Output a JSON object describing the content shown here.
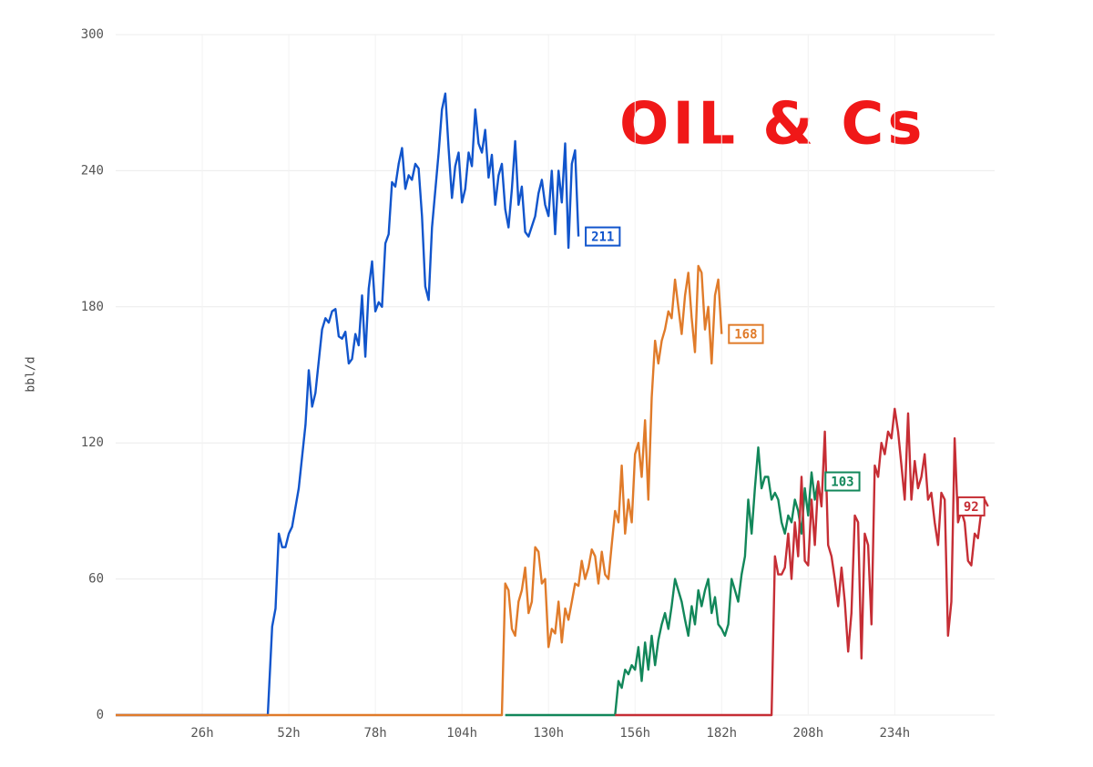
{
  "chart_data": {
    "type": "line",
    "ylabel": "bbl/d",
    "annotation": "OIL & Cs",
    "xlim": [
      0,
      264
    ],
    "ylim": [
      0,
      300
    ],
    "xticks": [
      {
        "value": 26,
        "label": "26h"
      },
      {
        "value": 52,
        "label": "52h"
      },
      {
        "value": 78,
        "label": "78h"
      },
      {
        "value": 104,
        "label": "104h"
      },
      {
        "value": 130,
        "label": "130h"
      },
      {
        "value": 156,
        "label": "156h"
      },
      {
        "value": 182,
        "label": "182h"
      },
      {
        "value": 208,
        "label": "208h"
      },
      {
        "value": 234,
        "label": "234h"
      }
    ],
    "yticks": [
      0,
      60,
      120,
      180,
      240,
      300
    ],
    "grid": true,
    "series": [
      {
        "color": "#1155cc",
        "x": [
          0,
          45.7,
          47,
          48,
          49,
          50,
          51,
          52,
          53,
          55,
          57,
          58,
          59,
          60,
          62,
          63,
          64,
          65,
          66,
          67,
          68,
          69,
          70,
          71,
          72,
          73,
          74,
          75,
          76,
          77,
          78,
          79,
          80,
          81,
          82,
          83,
          84,
          85,
          86,
          87,
          88,
          89,
          90,
          91,
          92,
          93,
          94,
          95,
          97,
          98,
          99,
          100,
          101,
          102,
          103,
          104,
          105,
          106,
          107,
          108,
          109,
          110,
          111,
          112,
          113,
          114,
          115,
          116,
          117,
          118,
          119,
          120,
          121,
          122,
          123,
          124,
          126,
          127,
          128,
          129,
          130,
          131,
          132,
          133,
          134,
          135,
          136,
          137,
          138,
          139
        ],
        "values": [
          0,
          0,
          39,
          47,
          80,
          74,
          74,
          80,
          83,
          100,
          128,
          152,
          136,
          142,
          170,
          175,
          173,
          178,
          179,
          167,
          166,
          169,
          155,
          157,
          168,
          163,
          185,
          158,
          188,
          200,
          178,
          182,
          180,
          208,
          212,
          235,
          233,
          243,
          250,
          232,
          238,
          236,
          243,
          241,
          220,
          189,
          183,
          215,
          248,
          267,
          274,
          250,
          228,
          242,
          248,
          226,
          232,
          248,
          242,
          267,
          252,
          248,
          258,
          237,
          247,
          225,
          238,
          243,
          223,
          215,
          232,
          253,
          225,
          233,
          213,
          211,
          220,
          230,
          236,
          225,
          220,
          240,
          212,
          240,
          226,
          252,
          206,
          243,
          249,
          211
        ]
      },
      {
        "color": "#e07b2a",
        "x": [
          0,
          116,
          117,
          118,
          119,
          120,
          121,
          122,
          123,
          124,
          125,
          126,
          127,
          128,
          129,
          130,
          131,
          132,
          133,
          134,
          135,
          136,
          137,
          138,
          139,
          140,
          141,
          142,
          143,
          144,
          145,
          146,
          147,
          148,
          149,
          150,
          151,
          152,
          153,
          154,
          155,
          156,
          157,
          158,
          159,
          160,
          161,
          162,
          163,
          164,
          165,
          166,
          167,
          168,
          169,
          170,
          171,
          172,
          173,
          174,
          175,
          176,
          177,
          178,
          179,
          180,
          181,
          182
        ],
        "values": [
          0,
          0,
          58,
          55,
          38,
          35,
          50,
          55,
          65,
          45,
          50,
          74,
          72,
          58,
          60,
          30,
          38,
          36,
          50,
          32,
          47,
          42,
          50,
          58,
          57,
          68,
          60,
          65,
          73,
          70,
          58,
          72,
          62,
          60,
          75,
          90,
          85,
          110,
          80,
          95,
          85,
          115,
          120,
          105,
          130,
          95,
          140,
          165,
          155,
          165,
          170,
          178,
          175,
          192,
          180,
          168,
          185,
          195,
          175,
          160,
          198,
          195,
          170,
          180,
          155,
          185,
          192,
          168
        ]
      },
      {
        "color": "#12875a",
        "x": [
          117,
          150,
          151,
          152,
          153,
          154,
          155,
          156,
          157,
          158,
          159,
          160,
          161,
          162,
          163,
          164,
          165,
          166,
          167,
          168,
          169,
          170,
          171,
          172,
          173,
          174,
          175,
          176,
          177,
          178,
          179,
          180,
          181,
          182,
          183,
          184,
          185,
          186,
          187,
          188,
          189,
          190,
          191,
          192,
          193,
          194,
          195,
          196,
          197,
          198,
          199,
          200,
          201,
          202,
          203,
          204,
          205,
          206,
          207,
          208,
          209,
          210,
          211
        ],
        "values": [
          0,
          0,
          15,
          12,
          20,
          18,
          22,
          20,
          30,
          15,
          32,
          20,
          35,
          22,
          33,
          40,
          45,
          38,
          48,
          60,
          55,
          50,
          42,
          35,
          48,
          40,
          55,
          48,
          55,
          60,
          45,
          52,
          40,
          38,
          35,
          40,
          60,
          55,
          50,
          62,
          70,
          95,
          80,
          100,
          118,
          100,
          105,
          105,
          95,
          98,
          95,
          85,
          80,
          88,
          85,
          95,
          90,
          80,
          100,
          88,
          107,
          95,
          103
        ]
      },
      {
        "color": "#c62e35",
        "x": [
          150,
          197,
          198,
          199,
          200,
          201,
          202,
          203,
          204,
          205,
          206,
          207,
          208,
          209,
          210,
          211,
          212,
          213,
          214,
          215,
          216,
          217,
          218,
          219,
          220,
          221,
          222,
          223,
          224,
          225,
          226,
          227,
          228,
          229,
          230,
          231,
          232,
          233,
          234,
          235,
          236,
          237,
          238,
          239,
          240,
          241,
          242,
          243,
          244,
          245,
          246,
          247,
          248,
          249,
          250,
          251,
          252,
          253,
          254,
          255,
          256,
          257,
          258,
          259,
          260,
          261,
          262
        ],
        "values": [
          0,
          0,
          70,
          62,
          62,
          65,
          80,
          60,
          85,
          70,
          105,
          68,
          66,
          95,
          75,
          103,
          92,
          125,
          75,
          70,
          60,
          48,
          65,
          50,
          28,
          45,
          88,
          85,
          25,
          80,
          75,
          40,
          110,
          105,
          120,
          115,
          125,
          122,
          135,
          125,
          110,
          95,
          133,
          95,
          112,
          100,
          105,
          115,
          95,
          98,
          85,
          75,
          98,
          95,
          35,
          50,
          122,
          85,
          90,
          85,
          68,
          66,
          80,
          78,
          90,
          95,
          92
        ]
      }
    ]
  }
}
